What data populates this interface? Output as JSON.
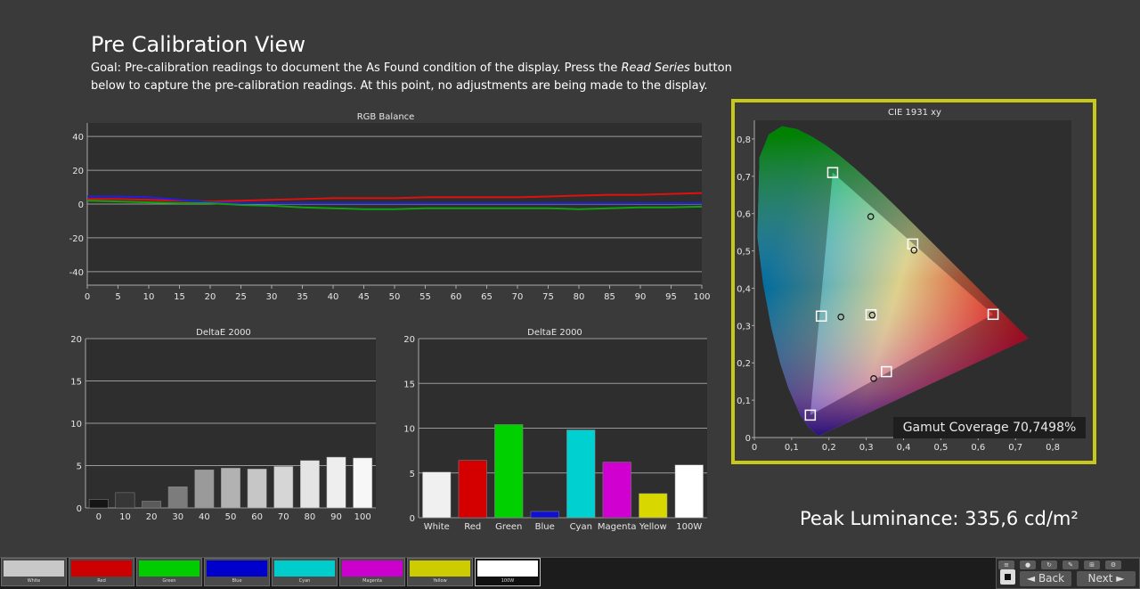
{
  "header": {
    "title": "Pre Calibration View",
    "goal_before": "Goal: Pre-calibration readings to document the As Found condition of the display. Press the ",
    "goal_italic": "Read Series",
    "goal_after": " button below to capture the pre-calibration readings. At this point, no adjustments are being made to the display."
  },
  "chart_data": [
    {
      "type": "line",
      "title": "RGB Balance",
      "x": [
        0,
        5,
        10,
        15,
        20,
        25,
        30,
        35,
        40,
        45,
        50,
        55,
        60,
        65,
        70,
        75,
        80,
        85,
        90,
        95,
        100
      ],
      "xticks": [
        "0",
        "5",
        "10",
        "15",
        "20",
        "25",
        "30",
        "35",
        "40",
        "45",
        "50",
        "55",
        "60",
        "65",
        "70",
        "75",
        "80",
        "85",
        "90",
        "95",
        "100"
      ],
      "yticks": [
        "40",
        "20",
        "0",
        "-20",
        "-40"
      ],
      "xlim": [
        0,
        100
      ],
      "ylim": [
        -48,
        48
      ],
      "grid": true,
      "series": [
        {
          "color": "#e01010",
          "values": [
            3,
            3,
            2.5,
            2,
            1.5,
            2,
            2.5,
            3,
            3.5,
            3.5,
            3.5,
            4,
            4,
            4,
            4,
            4.5,
            5,
            5.5,
            5.5,
            6,
            6.5
          ]
        },
        {
          "color": "#2020e0",
          "values": [
            4.5,
            4.5,
            4,
            2.5,
            1,
            0.5,
            0.5,
            0.5,
            0.5,
            0.5,
            0.5,
            0.5,
            0.5,
            0.5,
            0.5,
            0.5,
            0.5,
            0.5,
            0.5,
            0.5,
            0.5
          ]
        },
        {
          "color": "#10a010",
          "values": [
            2,
            1.5,
            1,
            0.5,
            0.5,
            -0.5,
            -1,
            -2,
            -2.5,
            -3,
            -3,
            -2.5,
            -2.5,
            -2.5,
            -2.5,
            -2.5,
            -3,
            -2.5,
            -2,
            -2,
            -1.5
          ]
        }
      ]
    },
    {
      "type": "bar",
      "title": "DeltaE 2000",
      "categories": [
        "0",
        "10",
        "20",
        "30",
        "40",
        "50",
        "60",
        "70",
        "80",
        "90",
        "100"
      ],
      "values": [
        1.0,
        1.8,
        0.8,
        2.5,
        4.5,
        4.7,
        4.6,
        4.9,
        5.6,
        6.0,
        5.9
      ],
      "colors": [
        "#151515",
        "#373737",
        "#5a5a5a",
        "#7c7c7c",
        "#9a9a9a",
        "#b2b2b2",
        "#c6c6c6",
        "#d6d6d6",
        "#e4e4e4",
        "#eeeeee",
        "#f7f7f7"
      ],
      "yticks": [
        "20",
        "15",
        "10",
        "5",
        "0"
      ],
      "ylim": [
        0,
        20
      ],
      "grid": true
    },
    {
      "type": "bar",
      "title": "DeltaE 2000",
      "categories": [
        "White",
        "Red",
        "Green",
        "Blue",
        "Cyan",
        "Magenta",
        "Yellow",
        "100W"
      ],
      "values": [
        5.1,
        6.4,
        10.4,
        0.7,
        9.8,
        6.2,
        2.7,
        5.9
      ],
      "colors": [
        "#f0f0f0",
        "#d40000",
        "#00d000",
        "#1010d0",
        "#00d0d0",
        "#d000d0",
        "#d8d800",
        "#ffffff"
      ],
      "yticks": [
        "20",
        "15",
        "10",
        "5",
        "0"
      ],
      "ylim": [
        0,
        20
      ],
      "grid": true
    },
    {
      "type": "scatter",
      "title": "CIE 1931 xy",
      "xlim": [
        0,
        0.85
      ],
      "ylim": [
        0,
        0.85
      ],
      "xticks": [
        "0",
        "0,1",
        "0,2",
        "0,3",
        "0,4",
        "0,5",
        "0,6",
        "0,7",
        "0,8"
      ],
      "yticks": [
        "0",
        "0,1",
        "0,2",
        "0,3",
        "0,4",
        "0,5",
        "0,6",
        "0,7",
        "0,8"
      ],
      "targets": [
        {
          "x": 0.64,
          "y": 0.33
        },
        {
          "x": 0.21,
          "y": 0.71
        },
        {
          "x": 0.15,
          "y": 0.06
        },
        {
          "x": 0.4247,
          "y": 0.5185
        },
        {
          "x": 0.1795,
          "y": 0.3253
        },
        {
          "x": 0.3541,
          "y": 0.1765
        },
        {
          "x": 0.3127,
          "y": 0.329
        }
      ],
      "measured": [
        {
          "x": 0.312,
          "y": 0.592
        },
        {
          "x": 0.428,
          "y": 0.502
        },
        {
          "x": 0.232,
          "y": 0.323
        },
        {
          "x": 0.32,
          "y": 0.158
        },
        {
          "x": 0.316,
          "y": 0.328
        }
      ],
      "triangle": [
        {
          "x": 0.64,
          "y": 0.33
        },
        {
          "x": 0.21,
          "y": 0.71
        },
        {
          "x": 0.15,
          "y": 0.06
        }
      ]
    }
  ],
  "gamut": {
    "label": "Gamut Coverage 70,7498%"
  },
  "peak": {
    "label": "Peak Luminance: 335,6 cd/m²"
  },
  "swatches": [
    {
      "label": "White",
      "color": "#c8c8c8"
    },
    {
      "label": "Red",
      "color": "#cc0000"
    },
    {
      "label": "Green",
      "color": "#00cc00"
    },
    {
      "label": "Blue",
      "color": "#0000cc"
    },
    {
      "label": "Cyan",
      "color": "#00cccc"
    },
    {
      "label": "Magenta",
      "color": "#cc00cc"
    },
    {
      "label": "Yellow",
      "color": "#cccc00"
    },
    {
      "label": "100W",
      "color": "#ffffff"
    }
  ],
  "controls": {
    "back_label": "Back",
    "next_label": "Next"
  }
}
